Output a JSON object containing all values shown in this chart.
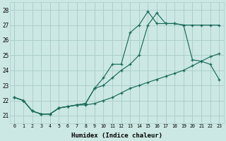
{
  "xlabel": "Humidex (Indice chaleur)",
  "bg_color": "#cce8e4",
  "grid_color": "#aacfcb",
  "line_color": "#1a6b5a",
  "xlim": [
    -0.5,
    23.5
  ],
  "ylim": [
    20.5,
    28.5
  ],
  "xticks": [
    0,
    1,
    2,
    3,
    4,
    5,
    6,
    7,
    8,
    9,
    10,
    11,
    12,
    13,
    14,
    15,
    16,
    17,
    18,
    19,
    20,
    21,
    22,
    23
  ],
  "yticks": [
    21,
    22,
    23,
    24,
    25,
    26,
    27,
    28
  ],
  "series1_x": [
    0,
    1,
    2,
    3,
    4,
    5,
    6,
    7,
    8,
    9,
    10,
    11,
    12,
    13,
    14,
    15,
    16,
    17,
    18,
    19,
    20,
    21,
    22,
    23
  ],
  "series1_y": [
    22.2,
    22.0,
    21.3,
    21.1,
    21.1,
    21.5,
    21.6,
    21.7,
    21.7,
    21.8,
    22.0,
    22.2,
    22.5,
    22.8,
    23.0,
    23.2,
    23.4,
    23.6,
    23.8,
    24.0,
    24.3,
    24.6,
    24.9,
    25.1
  ],
  "series2_x": [
    0,
    1,
    2,
    3,
    4,
    5,
    6,
    7,
    8,
    9,
    10,
    11,
    12,
    13,
    14,
    15,
    16,
    17,
    18,
    19,
    20,
    21,
    22,
    23
  ],
  "series2_y": [
    22.2,
    22.0,
    21.3,
    21.1,
    21.1,
    21.5,
    21.6,
    21.7,
    21.8,
    22.8,
    23.0,
    23.5,
    24.0,
    24.4,
    25.0,
    27.0,
    27.8,
    27.1,
    27.1,
    27.0,
    24.7,
    24.6,
    24.4,
    23.4
  ],
  "series3_x": [
    0,
    1,
    2,
    3,
    4,
    5,
    6,
    7,
    8,
    9,
    10,
    11,
    12,
    13,
    14,
    15,
    16,
    17,
    18,
    19,
    20,
    21,
    22,
    23
  ],
  "series3_y": [
    22.2,
    22.0,
    21.3,
    21.1,
    21.1,
    21.5,
    21.6,
    21.7,
    21.8,
    22.8,
    23.5,
    24.4,
    24.4,
    26.5,
    27.0,
    27.9,
    27.1,
    27.1,
    27.1,
    27.0,
    27.0,
    27.0,
    27.0,
    27.0
  ]
}
